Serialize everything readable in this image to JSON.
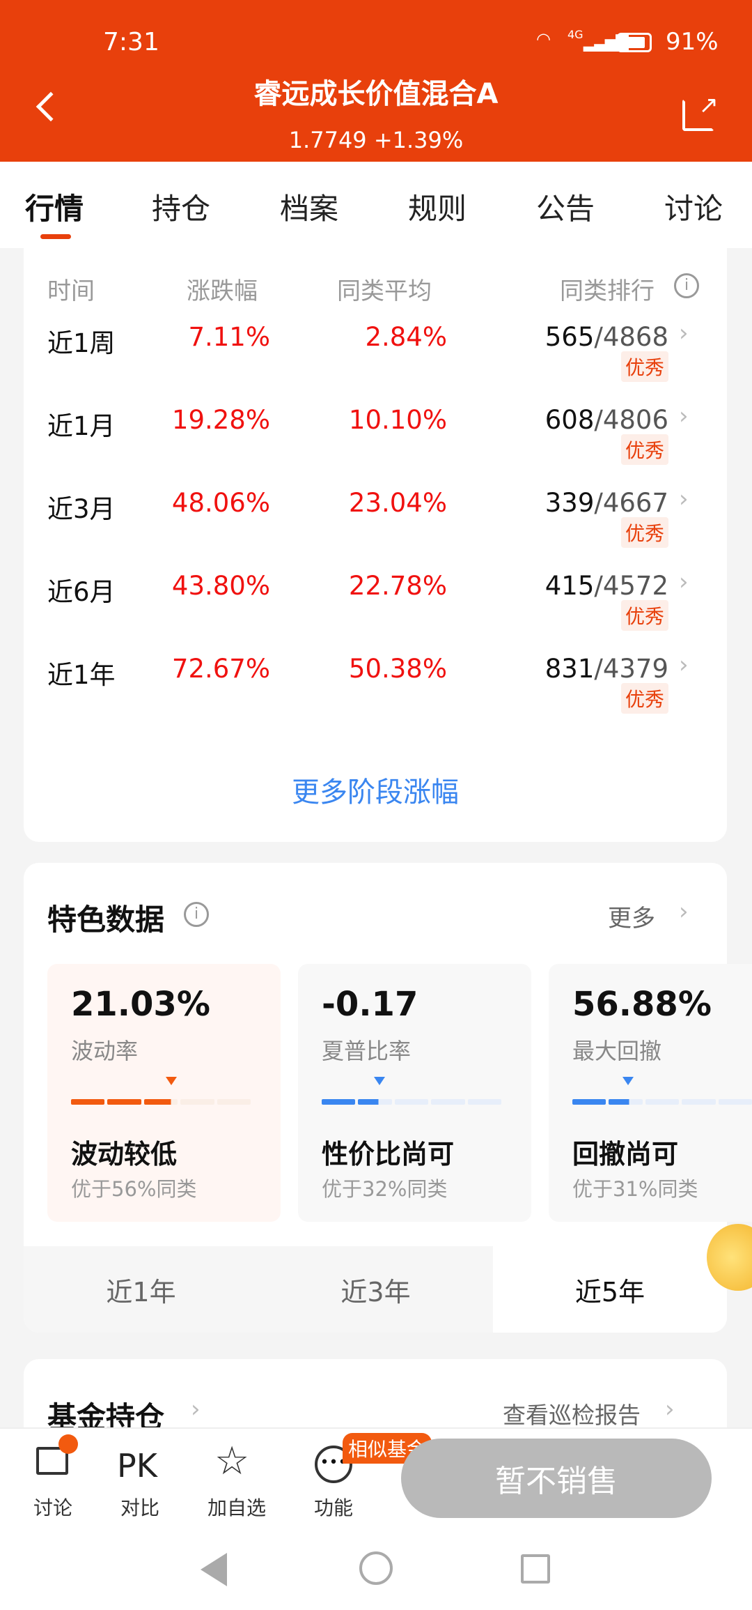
{
  "status_bar": {
    "time": "7:31",
    "network": "4G",
    "battery": "91%"
  },
  "header": {
    "title": "睿远成长价值混合A",
    "nav": "1.7749 +1.39%",
    "back_icon": "chevron-left-icon",
    "share_icon": "share-icon"
  },
  "tabs": [
    {
      "label": "行情",
      "active": true
    },
    {
      "label": "持仓"
    },
    {
      "label": "档案"
    },
    {
      "label": "规则"
    },
    {
      "label": "公告"
    },
    {
      "label": "讨论"
    }
  ],
  "performance": {
    "headers": [
      "时间",
      "涨跌幅",
      "同类平均",
      "同类排行"
    ],
    "rows": [
      {
        "period": "近1周",
        "change": "7.11%",
        "avg": "2.84%",
        "rank": "565",
        "total": "/4868",
        "badge": "优秀"
      },
      {
        "period": "近1月",
        "change": "19.28%",
        "avg": "10.10%",
        "rank": "608",
        "total": "/4806",
        "badge": "优秀"
      },
      {
        "period": "近3月",
        "change": "48.06%",
        "avg": "23.04%",
        "rank": "339",
        "total": "/4667",
        "badge": "优秀"
      },
      {
        "period": "近6月",
        "change": "43.80%",
        "avg": "22.78%",
        "rank": "415",
        "total": "/4572",
        "badge": "优秀"
      },
      {
        "period": "近1年",
        "change": "72.67%",
        "avg": "50.38%",
        "rank": "831",
        "total": "/4379",
        "badge": "优秀"
      }
    ],
    "more_link": "更多阶段涨幅"
  },
  "features": {
    "title": "特色数据",
    "more": "更多",
    "metrics": [
      {
        "value": "21.03%",
        "label": "波动率",
        "title": "波动较低",
        "sub": "优于56%同类",
        "accent": "#f25a0f",
        "level": 0.56
      },
      {
        "value": "-0.17",
        "label": "夏普比率",
        "title": "性价比尚可",
        "sub": "优于32%同类",
        "accent": "#3a86f0",
        "level": 0.32
      },
      {
        "value": "56.88%",
        "label": "最大回撤",
        "title": "回撤尚可",
        "sub": "优于31%同类",
        "accent": "#3a86f0",
        "level": 0.31
      }
    ],
    "periods": [
      {
        "label": "近1年"
      },
      {
        "label": "近3年"
      },
      {
        "label": "近5年",
        "active": true
      }
    ]
  },
  "holdings": {
    "title": "基金持仓",
    "report_link": "查看巡检报告"
  },
  "bottom_bar": {
    "items": [
      {
        "label": "讨论",
        "icon": "chat-icon"
      },
      {
        "label": "对比",
        "icon_text": "PK"
      },
      {
        "label": "加自选",
        "icon": "star-icon"
      },
      {
        "label": "功能",
        "icon": "more-icon"
      }
    ],
    "similar_badge": "相似基金",
    "buy_button": "暂不销售"
  },
  "colors": {
    "brand": "#e8400c",
    "rise": "#f0110f"
  }
}
